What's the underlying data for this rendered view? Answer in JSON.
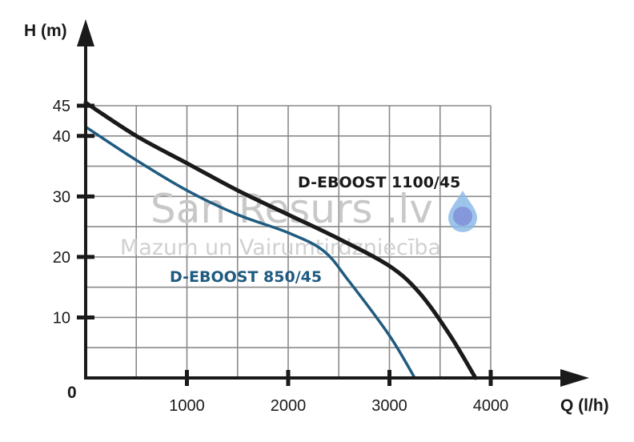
{
  "chart_data": {
    "type": "line",
    "xlabel": "Q (l/h)",
    "ylabel": "H (m)",
    "xlim": [
      0,
      4000
    ],
    "ylim": [
      0,
      45
    ],
    "x_ticks": [
      1000,
      2000,
      3000,
      4000
    ],
    "y_ticks": [
      10,
      20,
      30,
      40,
      45
    ],
    "origin_label": "0",
    "grid": true,
    "series": [
      {
        "name": "D-EBOOST 1100/45",
        "color": "#1a1a1a",
        "x": [
          0,
          500,
          1000,
          1500,
          2000,
          2500,
          3000,
          3300,
          3600,
          3850
        ],
        "y": [
          45.5,
          40,
          35.5,
          31,
          27,
          23,
          18.5,
          14,
          7,
          0
        ]
      },
      {
        "name": "D-EBOOST 850/45",
        "color": "#1f5b80",
        "x": [
          0,
          500,
          1000,
          1500,
          2000,
          2350,
          2600,
          3000,
          3250
        ],
        "y": [
          41.5,
          36,
          31,
          27,
          24,
          21,
          16,
          7,
          0
        ]
      }
    ]
  },
  "watermark": {
    "brand": "San Resurs .lv",
    "tagline": "Mazum un Vairumtirdzniecība",
    "drop_color": "#7fb3e6"
  }
}
